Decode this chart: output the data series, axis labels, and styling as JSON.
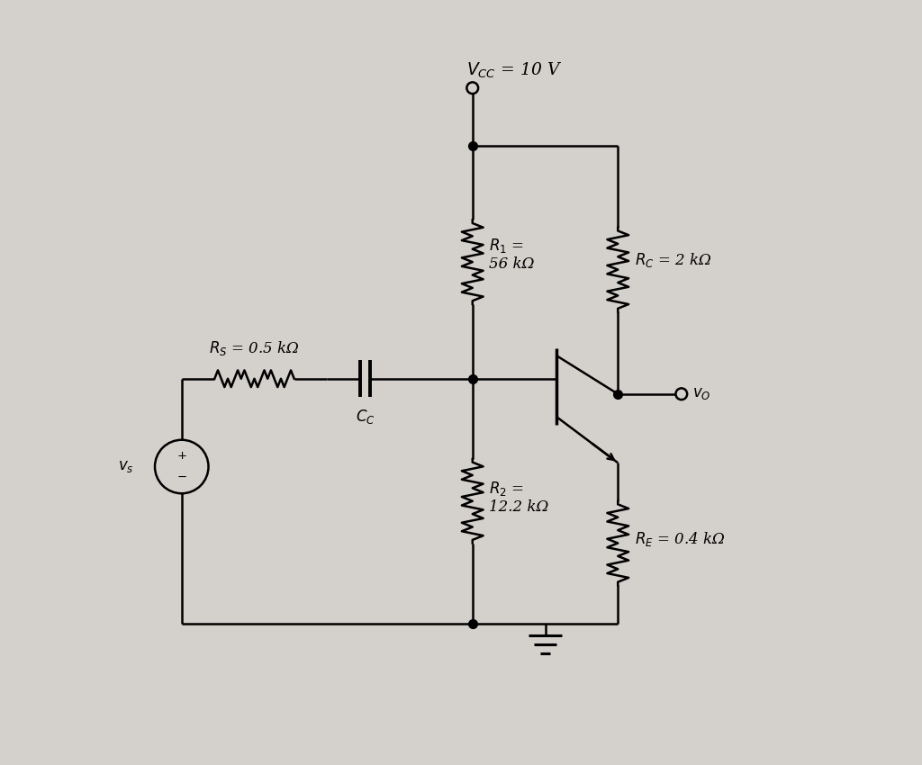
{
  "background_color": "#d4d0cc",
  "line_color": "#000000",
  "vcc_label": "$V_{CC}$ = 10 V",
  "r1_label": "$R_1$ =\n56 kΩ",
  "r2_label": "$R_2$ =\n12.2 kΩ",
  "rc_label": "$R_C$ = 2 kΩ",
  "re_label": "$R_E$ = 0.4 kΩ",
  "rs_label": "$R_S$ = 0.5 kΩ",
  "cc_label": "$C_C$",
  "vo_label": "$v_O$",
  "vs_label": "$v_s$"
}
